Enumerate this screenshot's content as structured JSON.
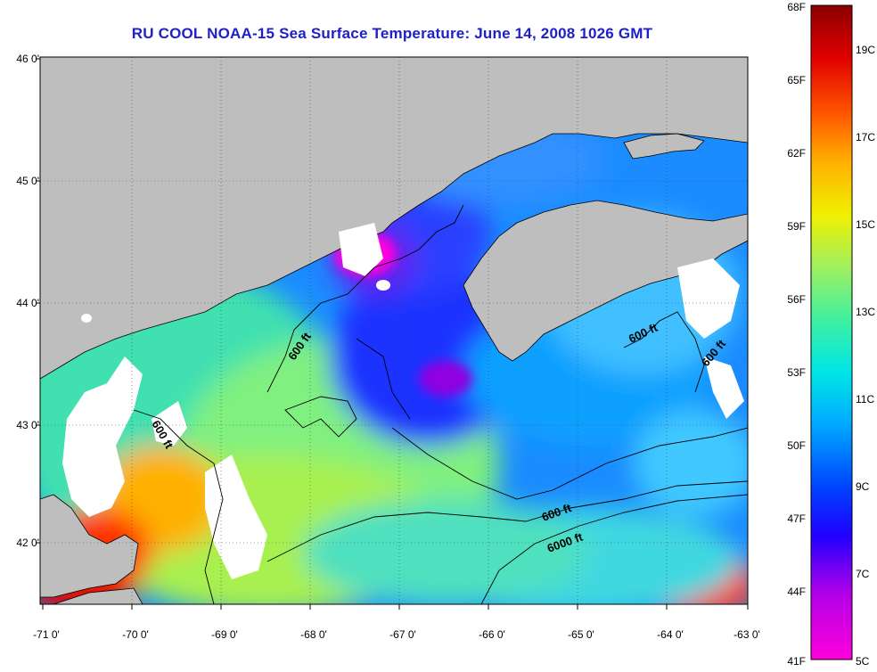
{
  "title": "RU COOL  NOAA-15  Sea Surface Temperature:  June 14, 2008 1026 GMT",
  "map": {
    "lat_labels": [
      "46 0'",
      "45 0'",
      "44 0'",
      "43 0'",
      "42 0'"
    ],
    "lon_labels": [
      "-71 0'",
      "-70 0'",
      "-69 0'",
      "-68 0'",
      "-67 0'",
      "-66 0'",
      "-65 0'",
      "-64 0'",
      "-63 0'"
    ],
    "contour_labels": [
      "600 ft",
      "600 ft",
      "600 ft",
      "600 ft",
      "600 ft",
      "6000 ft"
    ],
    "colors": {
      "land": "#bebebe",
      "cloud": "#ffffff",
      "contour": "#000000"
    }
  },
  "colorbar": {
    "fahrenheit_labels": [
      "68F",
      "65F",
      "62F",
      "59F",
      "56F",
      "53F",
      "50F",
      "47F",
      "44F",
      "41F"
    ],
    "celsius_labels": [
      "19C",
      "17C",
      "15C",
      "13C",
      "11C",
      "9C",
      "7C",
      "5C"
    ],
    "range_c": [
      5,
      20
    ]
  }
}
